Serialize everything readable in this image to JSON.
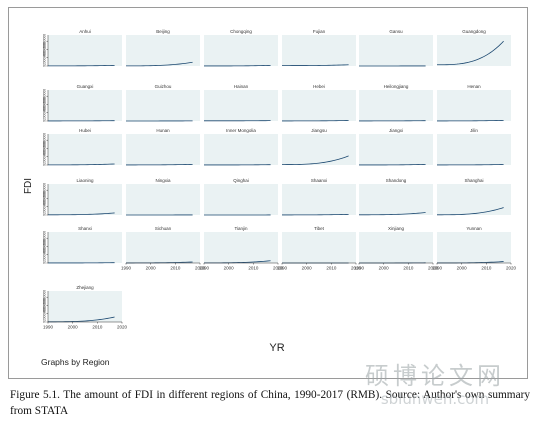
{
  "chart_data": {
    "type": "line",
    "layout": "small-multiples",
    "xlabel": "YR",
    "ylabel": "FDI",
    "note": "Graphs by Region",
    "x_ticks": [
      1990,
      2000,
      2010,
      2020
    ],
    "y_ticks": [
      "0",
      "20000000",
      "40000000",
      "60000000"
    ],
    "xlim": [
      1990,
      2020
    ],
    "ylim": [
      0,
      75000000
    ],
    "panels": [
      {
        "name": "Anhui",
        "y_start": 300000,
        "y_end": 1500000
      },
      {
        "name": "Beijing",
        "y_start": 300000,
        "y_end": 9000000
      },
      {
        "name": "Chongqing",
        "y_start": 100000,
        "y_end": 1500000
      },
      {
        "name": "Fujian",
        "y_start": 1000000,
        "y_end": 3000000
      },
      {
        "name": "Gansu",
        "y_start": 50000,
        "y_end": 200000
      },
      {
        "name": "Guangdong",
        "y_start": 3000000,
        "y_end": 60000000
      },
      {
        "name": "Guangxi",
        "y_start": 200000,
        "y_end": 800000
      },
      {
        "name": "Guizhou",
        "y_start": 50000,
        "y_end": 300000
      },
      {
        "name": "Hainan",
        "y_start": 400000,
        "y_end": 900000
      },
      {
        "name": "Hebei",
        "y_start": 200000,
        "y_end": 1200000
      },
      {
        "name": "Heilongjiang",
        "y_start": 200000,
        "y_end": 800000
      },
      {
        "name": "Henan",
        "y_start": 200000,
        "y_end": 1500000
      },
      {
        "name": "Hubei",
        "y_start": 300000,
        "y_end": 2500000
      },
      {
        "name": "Hunan",
        "y_start": 200000,
        "y_end": 1500000
      },
      {
        "name": "Inner Mongolia",
        "y_start": 100000,
        "y_end": 800000
      },
      {
        "name": "Jiangsu",
        "y_start": 1000000,
        "y_end": 22000000
      },
      {
        "name": "Jiangxi",
        "y_start": 100000,
        "y_end": 1500000
      },
      {
        "name": "Jilin",
        "y_start": 200000,
        "y_end": 1200000
      },
      {
        "name": "Liaoning",
        "y_start": 500000,
        "y_end": 5000000
      },
      {
        "name": "Ningxia",
        "y_start": 20000,
        "y_end": 200000
      },
      {
        "name": "Qinghai",
        "y_start": 20000,
        "y_end": 100000
      },
      {
        "name": "Shaanxi",
        "y_start": 200000,
        "y_end": 1500000
      },
      {
        "name": "Shandong",
        "y_start": 500000,
        "y_end": 6000000
      },
      {
        "name": "Shanghai",
        "y_start": 500000,
        "y_end": 18000000
      },
      {
        "name": "Shanxi",
        "y_start": 100000,
        "y_end": 800000
      },
      {
        "name": "Sichuan",
        "y_start": 200000,
        "y_end": 2500000
      },
      {
        "name": "Tianjin",
        "y_start": 300000,
        "y_end": 5500000
      },
      {
        "name": "Tibet",
        "y_start": 0,
        "y_end": 50000
      },
      {
        "name": "Xinjiang",
        "y_start": 20000,
        "y_end": 400000
      },
      {
        "name": "Yunnan",
        "y_start": 100000,
        "y_end": 3500000
      },
      {
        "name": "Zhejiang",
        "y_start": 500000,
        "y_end": 12000000
      }
    ]
  },
  "caption": "Figure 5.1. The amount of FDI in different regions of China, 1990-2017 (RMB). Source: Author's own summary from STATA",
  "watermark": {
    "chinese": "硕博论文网",
    "url": "sblunwen.com",
    "color": "#9aa3a6"
  },
  "colors": {
    "panel_background": "#eaf2f3",
    "series": "#1a476f"
  }
}
